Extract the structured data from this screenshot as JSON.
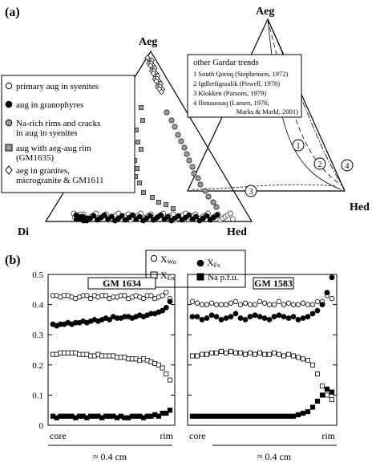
{
  "panel_a": {
    "label": "(a)",
    "apex_top": "Aeg",
    "apex_left": "Di",
    "apex_right": "Hed",
    "inset_apex_top": "Aeg",
    "inset_apex_right": "Hed",
    "trends_box": {
      "title": "other Gardar trends",
      "lines": [
        "1 South Qoroq (Stephenson, 1972)",
        "2 Igdlerfigssalik (Powell, 1978)",
        "3 Klokken (Parsons, 1979)",
        "4 Ilimaussaq (Larsen, 1976;",
        "Marks & Markl, 2001)"
      ]
    },
    "trend_markers": [
      "1",
      "2",
      "3",
      "4"
    ],
    "legend": [
      {
        "symbol": "open-circle",
        "lines": [
          "primary aug in syenites"
        ]
      },
      {
        "symbol": "filled-circle",
        "lines": [
          "aug in granophyres"
        ]
      },
      {
        "symbol": "grey-circle",
        "lines": [
          "Na-rich rims and cracks",
          "in aug in syenites"
        ]
      },
      {
        "symbol": "grey-square",
        "lines": [
          "aug with aeg-aug rim",
          "(GM1635)"
        ]
      },
      {
        "symbol": "open-diamond",
        "lines": [
          "aeg in granites,",
          "microgranite & GM1611"
        ]
      }
    ]
  },
  "panel_b": {
    "label": "(b)",
    "legend": [
      {
        "symbol": "open-circle",
        "text": "X",
        "sub": "Wo"
      },
      {
        "symbol": "filled-circle",
        "text": "X",
        "sub": "Fs"
      },
      {
        "symbol": "open-square",
        "text": "X",
        "sub": "En"
      },
      {
        "symbol": "filled-square",
        "text": "Na p.f.u.",
        "sub": ""
      }
    ],
    "x_start_label": "core",
    "x_end_label": "rim",
    "scale_label": "≈ 0.4 cm",
    "colors": {
      "ink": "#000000",
      "grey": "#9a9a9a",
      "open": "#ffffff"
    }
  },
  "chart_data": [
    {
      "type": "scatter",
      "title": "GM 1634",
      "ylim": [
        0,
        0.5
      ],
      "yticks": [
        0,
        0.1,
        0.2,
        0.3,
        0.4,
        0.5
      ],
      "ytick_labels": [
        "0",
        "0.1",
        "0.2",
        "0.3",
        "0.4",
        "0.5"
      ],
      "xlabel_start": "core",
      "xlabel_end": "rim",
      "series": [
        {
          "name": "XWo",
          "marker": "open-circle",
          "values": [
            0.43,
            0.43,
            0.425,
            0.43,
            0.43,
            0.425,
            0.42,
            0.425,
            0.43,
            0.43,
            0.42,
            0.43,
            0.425,
            0.43,
            0.43,
            0.42,
            0.425,
            0.425,
            0.43,
            0.43,
            0.42,
            0.425,
            0.43,
            0.425,
            0.42,
            0.43,
            0.43,
            0.42,
            0.425,
            0.43,
            0.44,
            0.42
          ]
        },
        {
          "name": "XFs",
          "marker": "filled-circle",
          "values": [
            0.335,
            0.33,
            0.335,
            0.335,
            0.34,
            0.335,
            0.34,
            0.34,
            0.345,
            0.34,
            0.345,
            0.35,
            0.345,
            0.35,
            0.355,
            0.35,
            0.36,
            0.355,
            0.355,
            0.36,
            0.36,
            0.355,
            0.36,
            0.365,
            0.36,
            0.365,
            0.37,
            0.37,
            0.375,
            0.38,
            0.39,
            0.41
          ]
        },
        {
          "name": "XEn",
          "marker": "open-square",
          "values": [
            0.235,
            0.235,
            0.24,
            0.24,
            0.24,
            0.24,
            0.24,
            0.235,
            0.235,
            0.235,
            0.23,
            0.23,
            0.235,
            0.23,
            0.23,
            0.23,
            0.23,
            0.225,
            0.225,
            0.225,
            0.22,
            0.22,
            0.22,
            0.215,
            0.22,
            0.215,
            0.21,
            0.205,
            0.2,
            0.19,
            0.17,
            0.15
          ]
        },
        {
          "name": "Na p.f.u.",
          "marker": "filled-square",
          "values": [
            0.03,
            0.025,
            0.03,
            0.03,
            0.03,
            0.03,
            0.025,
            0.03,
            0.03,
            0.025,
            0.03,
            0.03,
            0.03,
            0.025,
            0.03,
            0.03,
            0.03,
            0.025,
            0.03,
            0.025,
            0.025,
            0.03,
            0.03,
            0.03,
            0.025,
            0.03,
            0.03,
            0.035,
            0.03,
            0.04,
            0.04,
            0.05
          ]
        }
      ]
    },
    {
      "type": "scatter",
      "title": "GM 1583",
      "ylim": [
        0,
        0.5
      ],
      "xlabel_start": "core",
      "xlabel_end": "rim",
      "series": [
        {
          "name": "XWo",
          "marker": "open-circle",
          "values": [
            0.41,
            0.405,
            0.4,
            0.4,
            0.405,
            0.4,
            0.4,
            0.4,
            0.405,
            0.41,
            0.4,
            0.405,
            0.4,
            0.4,
            0.41,
            0.405,
            0.4,
            0.4,
            0.41,
            0.4,
            0.405,
            0.4,
            0.4,
            0.405,
            0.4,
            0.4,
            0.41,
            0.41,
            0.43,
            0.42
          ]
        },
        {
          "name": "XFs",
          "marker": "filled-circle",
          "values": [
            0.36,
            0.36,
            0.35,
            0.355,
            0.365,
            0.36,
            0.35,
            0.355,
            0.36,
            0.37,
            0.355,
            0.35,
            0.36,
            0.365,
            0.36,
            0.355,
            0.35,
            0.36,
            0.365,
            0.36,
            0.355,
            0.36,
            0.35,
            0.355,
            0.36,
            0.37,
            0.38,
            0.4,
            0.44,
            0.49
          ]
        },
        {
          "name": "XEn",
          "marker": "open-square",
          "values": [
            0.23,
            0.23,
            0.235,
            0.235,
            0.24,
            0.24,
            0.245,
            0.24,
            0.245,
            0.24,
            0.24,
            0.235,
            0.24,
            0.235,
            0.24,
            0.235,
            0.235,
            0.24,
            0.235,
            0.23,
            0.235,
            0.23,
            0.225,
            0.22,
            0.215,
            0.2,
            0.17,
            0.13,
            0.1,
            0.085
          ]
        },
        {
          "name": "Na p.f.u.",
          "marker": "filled-square",
          "values": [
            0.03,
            0.03,
            0.03,
            0.03,
            0.03,
            0.03,
            0.03,
            0.03,
            0.03,
            0.03,
            0.03,
            0.03,
            0.03,
            0.03,
            0.03,
            0.03,
            0.03,
            0.03,
            0.03,
            0.03,
            0.03,
            0.03,
            0.035,
            0.04,
            0.045,
            0.06,
            0.08,
            0.1,
            0.12,
            0.11
          ]
        }
      ]
    }
  ]
}
